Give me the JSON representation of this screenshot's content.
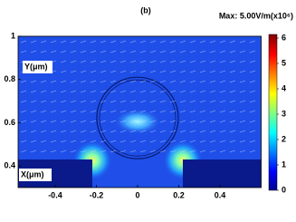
{
  "chart_data": {
    "type": "field-map",
    "title": "(b)",
    "max_label": "Max: 5.00V/m(x10⁶)",
    "xlabel": "X(μm)",
    "ylabel": "Y(μm)",
    "xlim": [
      -0.58,
      0.6
    ],
    "xticks": [
      -0.4,
      -0.2,
      0,
      0.2,
      0.4
    ],
    "ylim": [
      0.3,
      1
    ],
    "yticks": [
      0.4,
      0.6,
      0.8,
      1
    ],
    "clim": [
      0,
      6
    ],
    "cticks": [
      0,
      1,
      2,
      3,
      4,
      5,
      6
    ]
  }
}
